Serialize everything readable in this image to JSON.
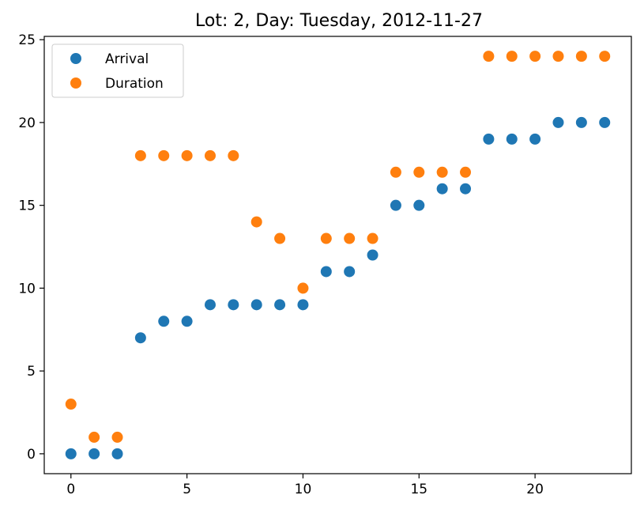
{
  "chart_data": {
    "type": "scatter",
    "title": "Lot: 2, Day: Tuesday, 2012-11-27",
    "xlabel": "",
    "ylabel": "",
    "xlim": [
      -1.15,
      24.15
    ],
    "ylim": [
      -1.2,
      25.2
    ],
    "xticks": [
      0,
      5,
      10,
      15,
      20
    ],
    "yticks": [
      0,
      5,
      10,
      15,
      20,
      25
    ],
    "grid": false,
    "legend": {
      "placement": "top-left"
    },
    "series": [
      {
        "name": "Arrival",
        "color": "#1f77b4",
        "x": [
          0,
          1,
          2,
          3,
          4,
          5,
          6,
          7,
          8,
          9,
          10,
          11,
          12,
          13,
          14,
          15,
          16,
          17,
          18,
          19,
          20,
          21,
          22,
          23
        ],
        "y": [
          0,
          0,
          0,
          7,
          8,
          8,
          9,
          9,
          9,
          9,
          9,
          11,
          11,
          12,
          15,
          15,
          16,
          16,
          19,
          19,
          19,
          20,
          20,
          20
        ]
      },
      {
        "name": "Duration",
        "color": "#ff7f0e",
        "x": [
          0,
          1,
          2,
          3,
          4,
          5,
          6,
          7,
          8,
          9,
          10,
          11,
          12,
          13,
          14,
          15,
          16,
          17,
          18,
          19,
          20,
          21,
          22,
          23
        ],
        "y": [
          3,
          1,
          1,
          18,
          18,
          18,
          18,
          18,
          14,
          13,
          10,
          13,
          13,
          13,
          17,
          17,
          17,
          17,
          24,
          24,
          24,
          24,
          24,
          24
        ]
      }
    ]
  }
}
